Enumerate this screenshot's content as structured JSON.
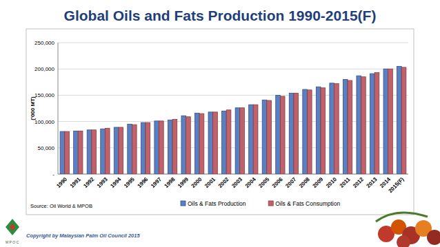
{
  "chart_data": {
    "type": "bar",
    "title": "Global Oils and Fats Production 1990-2015(F)",
    "y_label": "('000 MT)",
    "source": "Source: Oil World & MPOB",
    "categories": [
      "1990",
      "1991",
      "1992",
      "1993",
      "1994",
      "1995",
      "1996",
      "1997",
      "1998",
      "1999",
      "2000",
      "2001",
      "2002",
      "2003",
      "2004",
      "2005",
      "2006",
      "2007",
      "2008",
      "2009",
      "2010",
      "2011",
      "2012",
      "2013",
      "2014",
      "2015(F)"
    ],
    "series": [
      {
        "name": "Oils & Fats Production",
        "color": "#5b7fbf",
        "values": [
          81000,
          82000,
          84000,
          86000,
          89000,
          95000,
          98000,
          101000,
          103000,
          111000,
          116000,
          118000,
          120000,
          126000,
          132000,
          141000,
          150000,
          154000,
          161000,
          166000,
          173000,
          180000,
          187000,
          191000,
          200000,
          205000
        ]
      },
      {
        "name": "Oils & Fats Consumption",
        "color": "#c0626a",
        "values": [
          81000,
          82000,
          84000,
          87000,
          89000,
          94000,
          98000,
          101000,
          104000,
          109000,
          115000,
          118000,
          122000,
          126000,
          132000,
          140000,
          148000,
          154000,
          160000,
          164000,
          172000,
          178000,
          185000,
          193000,
          200000,
          203000
        ]
      }
    ],
    "ylim": [
      0,
      250000
    ],
    "yticks": [
      {
        "value": 0,
        "label": "-"
      },
      {
        "value": 50000,
        "label": "50,000"
      },
      {
        "value": 100000,
        "label": "100,000"
      },
      {
        "value": 150000,
        "label": "150,000"
      },
      {
        "value": 200000,
        "label": "200,000"
      },
      {
        "value": 250000,
        "label": "250,000"
      }
    ],
    "grid": true,
    "legend": "bottom"
  },
  "footer": {
    "copyright": "Copyright by Malaysian Palm Oil Council 2015",
    "logo": "M P O C"
  }
}
